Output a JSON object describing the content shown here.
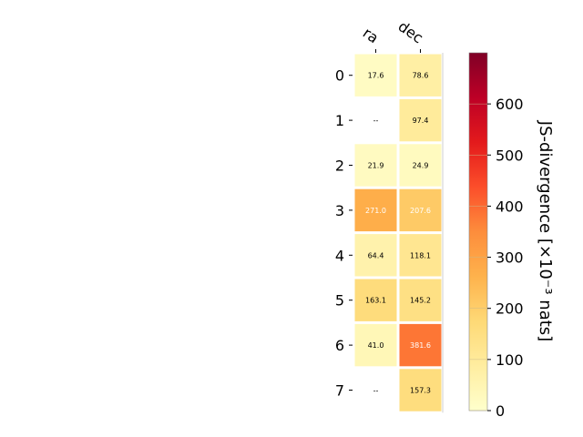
{
  "chart_data": {
    "type": "heatmap",
    "columns": [
      "ra",
      "dec"
    ],
    "rows": [
      "0",
      "1",
      "2",
      "3",
      "4",
      "5",
      "6",
      "7"
    ],
    "values": [
      [
        17.6,
        78.6
      ],
      [
        null,
        97.4
      ],
      [
        21.9,
        24.9
      ],
      [
        271.0,
        207.6
      ],
      [
        64.4,
        118.1
      ],
      [
        163.1,
        145.2
      ],
      [
        41.0,
        381.6
      ],
      [
        null,
        157.3
      ]
    ],
    "cell_labels": [
      [
        "17.6",
        "78.6"
      ],
      [
        "--",
        "97.4"
      ],
      [
        "21.9",
        "24.9"
      ],
      [
        "271.0",
        "207.6"
      ],
      [
        "64.4",
        "118.1"
      ],
      [
        "163.1",
        "145.2"
      ],
      [
        "41.0",
        "381.6"
      ],
      [
        "--",
        "157.3"
      ]
    ],
    "colorbar": {
      "label": "JS-divergence [×10⁻³ nats]",
      "min": 0,
      "max": 700,
      "ticks": [
        0,
        100,
        200,
        300,
        400,
        500,
        600
      ],
      "colormap": "YlOrRd"
    }
  }
}
